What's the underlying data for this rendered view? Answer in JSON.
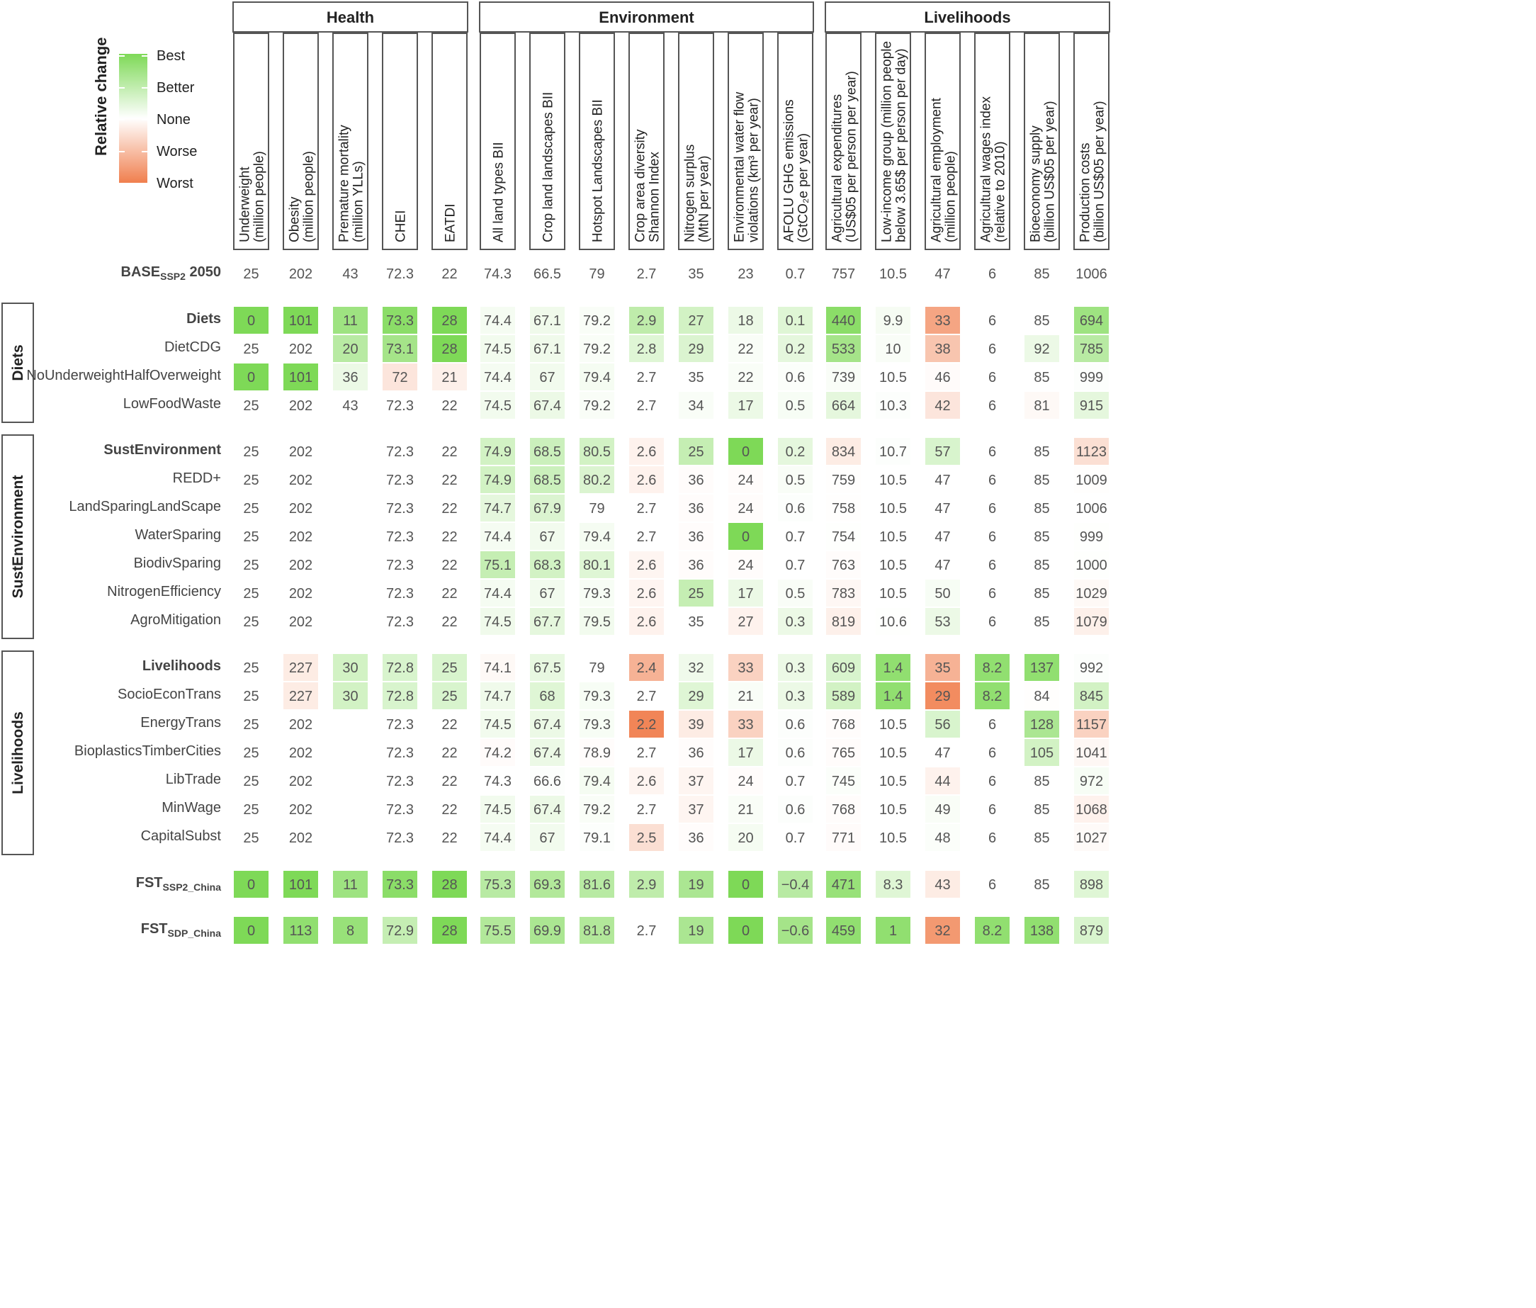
{
  "legend": {
    "title": "Relative change",
    "labels": [
      "Best",
      "Better",
      "None",
      "Worse",
      "Worst"
    ]
  },
  "groups": [
    {
      "label": "Health",
      "from": 0,
      "to": 4
    },
    {
      "label": "Environment",
      "from": 5,
      "to": 11
    },
    {
      "label": "Livelihoods",
      "from": 12,
      "to": 17
    }
  ],
  "columns": [
    {
      "lines": [
        "Underweight",
        "(million people)"
      ]
    },
    {
      "lines": [
        "Obesity",
        "(million people)"
      ]
    },
    {
      "lines": [
        "Premature mortality",
        "(million YLLs)"
      ]
    },
    {
      "lines": [
        "CHEI"
      ]
    },
    {
      "lines": [
        "EATDI"
      ]
    },
    {
      "lines": [
        "All land types BII"
      ]
    },
    {
      "lines": [
        "Crop land landscapes BII"
      ]
    },
    {
      "lines": [
        "Hotspot Landscapes BII"
      ]
    },
    {
      "lines": [
        "Crop area diversity",
        "Shannon Index"
      ]
    },
    {
      "lines": [
        "Nitrogen surplus",
        "(MtN per year)"
      ]
    },
    {
      "lines": [
        "Environmental water flow",
        "violations (km³ per year)"
      ]
    },
    {
      "lines": [
        "AFOLU GHG emissions",
        "(GtCO₂e per year)"
      ]
    },
    {
      "lines": [
        "Agricultural expenditures",
        "(US$05 per person per year)"
      ]
    },
    {
      "lines": [
        "Low-income group (million people",
        "below 3.65$ per person per day)"
      ]
    },
    {
      "lines": [
        "Agricultural employment",
        "(million people)"
      ]
    },
    {
      "lines": [
        "Agricultural wages index",
        "(relative to 2010)"
      ]
    },
    {
      "lines": [
        "Bioeconomy supply",
        "(billion US$05 per year)"
      ]
    },
    {
      "lines": [
        "Production costs",
        "(billion US$05 per year)"
      ]
    }
  ],
  "baseline": {
    "label_main": "BASE",
    "label_sub": "SSP2",
    "label_suffix": " 2050",
    "values": [
      "25",
      "202",
      "43",
      "72.3",
      "22",
      "74.3",
      "66.5",
      "79",
      "2.7",
      "35",
      "23",
      "0.7",
      "757",
      "10.5",
      "47",
      "6",
      "85",
      "1006"
    ]
  },
  "sections": [
    {
      "label": "Diets",
      "rows": [
        {
          "name": "Diets",
          "bold": true,
          "values": [
            "0",
            "101",
            "11",
            "73.3",
            "28",
            "74.4",
            "67.1",
            "79.2",
            "2.9",
            "27",
            "18",
            "0.1",
            "440",
            "9.9",
            "33",
            "6",
            "85",
            "694"
          ],
          "shade": [
            1,
            1,
            0.75,
            0.9,
            1,
            0.08,
            0.12,
            0.05,
            0.5,
            0.35,
            0.15,
            0.25,
            0.9,
            0.07,
            -0.7,
            0,
            0,
            0.75
          ]
        },
        {
          "name": "DietCDG",
          "bold": false,
          "values": [
            "25",
            "202",
            "20",
            "73.1",
            "28",
            "74.5",
            "67.1",
            "79.2",
            "2.8",
            "29",
            "22",
            "0.2",
            "533",
            "10",
            "38",
            "6",
            "92",
            "785"
          ],
          "shade": [
            0,
            0,
            0.55,
            0.7,
            1,
            0.1,
            0.12,
            0.05,
            0.25,
            0.28,
            0.05,
            0.2,
            0.7,
            0.05,
            -0.45,
            0,
            0.15,
            0.55
          ]
        },
        {
          "name": "NoUnderweightHalfOverweight",
          "bold": false,
          "values": [
            "0",
            "101",
            "36",
            "72",
            "21",
            "74.4",
            "67",
            "79.4",
            "2.7",
            "35",
            "22",
            "0.6",
            "739",
            "10.5",
            "46",
            "6",
            "85",
            "999"
          ],
          "shade": [
            1,
            1,
            0.15,
            -0.2,
            -0.12,
            0.08,
            0.1,
            0.08,
            0,
            0,
            0.05,
            0.03,
            0.05,
            0,
            -0.03,
            0,
            0,
            0.02
          ]
        },
        {
          "name": "LowFoodWaste",
          "bold": false,
          "values": [
            "25",
            "202",
            "43",
            "72.3",
            "22",
            "74.5",
            "67.4",
            "79.2",
            "2.7",
            "34",
            "17",
            "0.5",
            "664",
            "10.3",
            "42",
            "6",
            "81",
            "915"
          ],
          "shade": [
            0,
            0,
            0,
            0,
            0,
            0.1,
            0.15,
            0.05,
            0,
            0.05,
            0.15,
            0.06,
            0.2,
            0.02,
            -0.2,
            0,
            -0.05,
            0.2
          ]
        }
      ]
    },
    {
      "label": "SustEnvironment",
      "rows": [
        {
          "name": "SustEnvironment",
          "bold": true,
          "values": [
            "25",
            "202",
            "",
            "72.3",
            "22",
            "74.9",
            "68.5",
            "80.5",
            "2.6",
            "25",
            "0",
            "0.2",
            "834",
            "10.7",
            "57",
            "6",
            "85",
            "1123"
          ],
          "shade": [
            0,
            0,
            0,
            0,
            0,
            0.35,
            0.4,
            0.35,
            -0.1,
            0.45,
            1,
            0.2,
            -0.15,
            0.02,
            0.3,
            0,
            0,
            -0.25
          ]
        },
        {
          "name": "REDD+",
          "bold": false,
          "values": [
            "25",
            "202",
            "",
            "72.3",
            "22",
            "74.9",
            "68.5",
            "80.2",
            "2.6",
            "36",
            "24",
            "0.5",
            "759",
            "10.5",
            "47",
            "6",
            "85",
            "1009"
          ],
          "shade": [
            0,
            0,
            0,
            0,
            0,
            0.35,
            0.4,
            0.28,
            -0.1,
            -0.02,
            -0.02,
            0.05,
            -0.01,
            0,
            0,
            0,
            0,
            -0.01
          ]
        },
        {
          "name": "LandSparingLandScape",
          "bold": false,
          "values": [
            "25",
            "202",
            "",
            "72.3",
            "22",
            "74.7",
            "67.9",
            "79",
            "2.7",
            "36",
            "24",
            "0.6",
            "758",
            "10.5",
            "47",
            "6",
            "85",
            "1006"
          ],
          "shade": [
            0,
            0,
            0,
            0,
            0,
            0.2,
            0.28,
            0,
            0,
            -0.02,
            -0.02,
            0.02,
            -0.01,
            0,
            0,
            0,
            0,
            0
          ]
        },
        {
          "name": "WaterSparing",
          "bold": false,
          "values": [
            "25",
            "202",
            "",
            "72.3",
            "22",
            "74.4",
            "67",
            "79.4",
            "2.7",
            "36",
            "0",
            "0.7",
            "754",
            "10.5",
            "47",
            "6",
            "85",
            "999"
          ],
          "shade": [
            0,
            0,
            0,
            0,
            0,
            0.08,
            0.1,
            0.08,
            0,
            -0.02,
            1,
            0,
            0.01,
            0,
            0,
            0,
            0,
            0.01
          ]
        },
        {
          "name": "BiodivSparing",
          "bold": false,
          "values": [
            "25",
            "202",
            "",
            "72.3",
            "22",
            "75.1",
            "68.3",
            "80.1",
            "2.6",
            "36",
            "24",
            "0.7",
            "763",
            "10.5",
            "47",
            "6",
            "85",
            "1000"
          ],
          "shade": [
            0,
            0,
            0,
            0,
            0,
            0.45,
            0.35,
            0.25,
            -0.08,
            -0.02,
            -0.02,
            0,
            -0.02,
            0,
            0,
            0,
            0,
            0.01
          ]
        },
        {
          "name": "NitrogenEfficiency",
          "bold": false,
          "values": [
            "25",
            "202",
            "",
            "72.3",
            "22",
            "74.4",
            "67",
            "79.3",
            "2.6",
            "25",
            "17",
            "0.5",
            "783",
            "10.5",
            "50",
            "6",
            "85",
            "1029"
          ],
          "shade": [
            0,
            0,
            0,
            0,
            0,
            0.08,
            0.1,
            0.06,
            -0.08,
            0.45,
            0.15,
            0.05,
            -0.06,
            0,
            0.06,
            0,
            0,
            -0.05
          ]
        },
        {
          "name": "AgroMitigation",
          "bold": false,
          "values": [
            "25",
            "202",
            "",
            "72.3",
            "22",
            "74.5",
            "67.7",
            "79.5",
            "2.6",
            "35",
            "27",
            "0.3",
            "819",
            "10.6",
            "53",
            "6",
            "85",
            "1079"
          ],
          "shade": [
            0,
            0,
            0,
            0,
            0,
            0.12,
            0.2,
            0.1,
            -0.1,
            0,
            -0.1,
            0.15,
            -0.12,
            0.01,
            0.15,
            0,
            0,
            -0.12
          ]
        }
      ]
    },
    {
      "label": "Livelihoods",
      "rows": [
        {
          "name": "Livelihoods",
          "bold": true,
          "values": [
            "25",
            "227",
            "30",
            "72.8",
            "25",
            "74.1",
            "67.5",
            "79",
            "2.4",
            "32",
            "33",
            "0.3",
            "609",
            "1.4",
            "35",
            "8.2",
            "137",
            "992"
          ],
          "shade": [
            0,
            -0.15,
            0.35,
            0.3,
            0.3,
            -0.05,
            0.18,
            0,
            -0.6,
            0.12,
            -0.35,
            0.15,
            0.3,
            0.85,
            -0.6,
            0.85,
            0.85,
            0.02
          ]
        },
        {
          "name": "SocioEconTrans",
          "bold": false,
          "values": [
            "25",
            "227",
            "30",
            "72.8",
            "25",
            "74.7",
            "68",
            "79.3",
            "2.7",
            "29",
            "21",
            "0.3",
            "589",
            "1.4",
            "29",
            "8.2",
            "84",
            "845"
          ],
          "shade": [
            0,
            -0.15,
            0.35,
            0.3,
            0.3,
            0.12,
            0.25,
            0.06,
            0,
            0.25,
            0.05,
            0.15,
            0.35,
            0.85,
            -0.9,
            0.85,
            -0.01,
            0.35
          ]
        },
        {
          "name": "EnergyTrans",
          "bold": false,
          "values": [
            "25",
            "202",
            "",
            "72.3",
            "22",
            "74.5",
            "67.4",
            "79.3",
            "2.2",
            "39",
            "33",
            "0.6",
            "768",
            "10.5",
            "56",
            "6",
            "128",
            "1157"
          ],
          "shade": [
            0,
            0,
            0,
            0,
            0,
            0.1,
            0.15,
            0.06,
            -0.95,
            -0.15,
            -0.35,
            0.02,
            -0.02,
            0,
            0.3,
            0,
            0.65,
            -0.35
          ]
        },
        {
          "name": "BioplasticsTimberCities",
          "bold": false,
          "values": [
            "25",
            "202",
            "",
            "72.3",
            "22",
            "74.2",
            "67.4",
            "78.9",
            "2.7",
            "36",
            "17",
            "0.6",
            "765",
            "10.5",
            "47",
            "6",
            "105",
            "1041"
          ],
          "shade": [
            0,
            0,
            0,
            0,
            0,
            -0.03,
            0.15,
            -0.02,
            0,
            -0.02,
            0.15,
            0.02,
            -0.02,
            0,
            0,
            0,
            0.35,
            -0.06
          ]
        },
        {
          "name": "LibTrade",
          "bold": false,
          "values": [
            "25",
            "202",
            "",
            "72.3",
            "22",
            "74.3",
            "66.6",
            "79.4",
            "2.6",
            "37",
            "24",
            "0.7",
            "745",
            "10.5",
            "44",
            "6",
            "85",
            "972"
          ],
          "shade": [
            0,
            0,
            0,
            0,
            0,
            0,
            0.02,
            0.08,
            -0.08,
            -0.08,
            -0.02,
            0,
            0.03,
            0,
            -0.1,
            0,
            0,
            0.06
          ]
        },
        {
          "name": "MinWage",
          "bold": false,
          "values": [
            "25",
            "202",
            "",
            "72.3",
            "22",
            "74.5",
            "67.4",
            "79.2",
            "2.7",
            "37",
            "21",
            "0.6",
            "768",
            "10.5",
            "49",
            "6",
            "85",
            "1068"
          ],
          "shade": [
            0,
            0,
            0,
            0,
            0,
            0.1,
            0.15,
            0.05,
            0,
            -0.08,
            0.05,
            0.02,
            -0.02,
            0,
            0.05,
            0,
            0,
            -0.1
          ]
        },
        {
          "name": "CapitalSubst",
          "bold": false,
          "values": [
            "25",
            "202",
            "",
            "72.3",
            "22",
            "74.4",
            "67",
            "79.1",
            "2.5",
            "36",
            "20",
            "0.7",
            "771",
            "10.5",
            "48",
            "6",
            "85",
            "1027"
          ],
          "shade": [
            0,
            0,
            0,
            0,
            0,
            0.08,
            0.1,
            0.02,
            -0.25,
            -0.02,
            0.08,
            0,
            -0.03,
            0,
            0.03,
            0,
            0,
            -0.04
          ]
        }
      ]
    }
  ],
  "fst_rows": [
    {
      "main": "FST",
      "sub": "SSP2_China",
      "values": [
        "0",
        "101",
        "11",
        "73.3",
        "28",
        "75.3",
        "69.3",
        "81.6",
        "2.9",
        "19",
        "0",
        "−0.4",
        "471",
        "8.3",
        "43",
        "6",
        "85",
        "898"
      ],
      "shade": [
        1,
        1,
        0.75,
        0.9,
        1,
        0.55,
        0.6,
        0.55,
        0.5,
        0.65,
        1,
        0.55,
        0.8,
        0.25,
        -0.15,
        0,
        0,
        0.25
      ]
    },
    {
      "main": "FST",
      "sub": "SDP_China",
      "values": [
        "0",
        "113",
        "8",
        "72.9",
        "28",
        "75.5",
        "69.9",
        "81.8",
        "2.7",
        "19",
        "0",
        "−0.6",
        "459",
        "1",
        "32",
        "8.2",
        "138",
        "879"
      ],
      "shade": [
        1,
        0.85,
        0.8,
        0.45,
        1,
        0.6,
        0.65,
        0.6,
        0,
        0.65,
        1,
        0.7,
        0.85,
        0.85,
        -0.8,
        0.85,
        0.85,
        0.3
      ]
    }
  ],
  "colors": {
    "best": "#7ed957",
    "none": "#ffffff",
    "worst": "#f07f4e",
    "text": "#4a4a4a",
    "border": "#555555"
  }
}
